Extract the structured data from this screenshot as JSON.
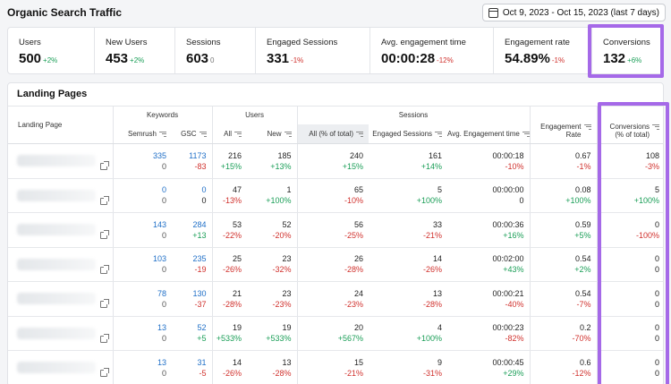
{
  "header": {
    "title": "Organic Search Traffic",
    "date_range": "Oct 9, 2023 - Oct 15, 2023 (last 7 days)"
  },
  "kpis": [
    {
      "label": "Users",
      "value": "500",
      "delta": "+2%",
      "tone": "pos"
    },
    {
      "label": "New Users",
      "value": "453",
      "delta": "+2%",
      "tone": "pos"
    },
    {
      "label": "Sessions",
      "value": "603",
      "delta": "0",
      "tone": "neu"
    },
    {
      "label": "Engaged Sessions",
      "value": "331",
      "delta": "-1%",
      "tone": "neg"
    },
    {
      "label": "Avg. engagement time",
      "value": "00:00:28",
      "delta": "-12%",
      "tone": "neg"
    },
    {
      "label": "Engagement rate",
      "value": "54.89%",
      "delta": "-1%",
      "tone": "neg"
    },
    {
      "label": "Conversions",
      "value": "132",
      "delta": "+6%",
      "tone": "pos"
    }
  ],
  "section_title": "Landing Pages",
  "table": {
    "groups": {
      "landing_page": "Landing Page",
      "keywords": "Keywords",
      "users": "Users",
      "sessions": "Sessions"
    },
    "columns": {
      "semrush": "Semrush",
      "gsc": "GSC",
      "all": "All",
      "new": "New",
      "all_pct": "All (% of total)",
      "engaged": "Engaged Sessions",
      "avg_time": "Avg. Engagement time",
      "eng_rate_1": "Engagement",
      "eng_rate_2": "Rate",
      "conv_1": "Conversions",
      "conv_2": "(% of total)"
    },
    "rows": [
      {
        "semrush": "335",
        "semrush_d": "0",
        "gsc": "1173",
        "gsc_d": "-83",
        "gsc_t": "neg",
        "all": "216",
        "all_d": "+15%",
        "all_t": "pos",
        "new": "185",
        "new_d": "+13%",
        "new_t": "pos",
        "sess": "240",
        "sess_d": "+15%",
        "sess_t": "pos",
        "eng": "161",
        "eng_d": "+14%",
        "eng_t": "pos",
        "time": "00:00:18",
        "time_d": "-10%",
        "time_t": "neg",
        "rate": "0.67",
        "rate_d": "-1%",
        "rate_t": "neg",
        "conv": "108",
        "conv_d": "-3%",
        "conv_t": "neg"
      },
      {
        "semrush": "0",
        "semrush_d": "0",
        "gsc": "0",
        "gsc_d": "0",
        "gsc_t": "dark",
        "all": "47",
        "all_d": "-13%",
        "all_t": "neg",
        "new": "1",
        "new_d": "+100%",
        "new_t": "pos",
        "sess": "65",
        "sess_d": "-10%",
        "sess_t": "neg",
        "eng": "5",
        "eng_d": "+100%",
        "eng_t": "pos",
        "time": "00:00:00",
        "time_d": "0",
        "time_t": "dark",
        "rate": "0.08",
        "rate_d": "+100%",
        "rate_t": "pos",
        "conv": "5",
        "conv_d": "+100%",
        "conv_t": "pos"
      },
      {
        "semrush": "143",
        "semrush_d": "0",
        "gsc": "284",
        "gsc_d": "+13",
        "gsc_t": "pos",
        "all": "53",
        "all_d": "-22%",
        "all_t": "neg",
        "new": "52",
        "new_d": "-20%",
        "new_t": "neg",
        "sess": "56",
        "sess_d": "-25%",
        "sess_t": "neg",
        "eng": "33",
        "eng_d": "-21%",
        "eng_t": "neg",
        "time": "00:00:36",
        "time_d": "+16%",
        "time_t": "pos",
        "rate": "0.59",
        "rate_d": "+5%",
        "rate_t": "pos",
        "conv": "0",
        "conv_d": "-100%",
        "conv_t": "neg"
      },
      {
        "semrush": "103",
        "semrush_d": "0",
        "gsc": "235",
        "gsc_d": "-19",
        "gsc_t": "neg",
        "all": "25",
        "all_d": "-26%",
        "all_t": "neg",
        "new": "23",
        "new_d": "-32%",
        "new_t": "neg",
        "sess": "26",
        "sess_d": "-28%",
        "sess_t": "neg",
        "eng": "14",
        "eng_d": "-26%",
        "eng_t": "neg",
        "time": "00:02:00",
        "time_d": "+43%",
        "time_t": "pos",
        "rate": "0.54",
        "rate_d": "+2%",
        "rate_t": "pos",
        "conv": "0",
        "conv_d": "0",
        "conv_t": "dark"
      },
      {
        "semrush": "78",
        "semrush_d": "0",
        "gsc": "130",
        "gsc_d": "-37",
        "gsc_t": "neg",
        "all": "21",
        "all_d": "-28%",
        "all_t": "neg",
        "new": "23",
        "new_d": "-23%",
        "new_t": "neg",
        "sess": "24",
        "sess_d": "-23%",
        "sess_t": "neg",
        "eng": "13",
        "eng_d": "-28%",
        "eng_t": "neg",
        "time": "00:00:21",
        "time_d": "-40%",
        "time_t": "neg",
        "rate": "0.54",
        "rate_d": "-7%",
        "rate_t": "neg",
        "conv": "0",
        "conv_d": "0",
        "conv_t": "dark"
      },
      {
        "semrush": "13",
        "semrush_d": "0",
        "gsc": "52",
        "gsc_d": "+5",
        "gsc_t": "pos",
        "all": "19",
        "all_d": "+533%",
        "all_t": "pos",
        "new": "19",
        "new_d": "+533%",
        "new_t": "pos",
        "sess": "20",
        "sess_d": "+567%",
        "sess_t": "pos",
        "eng": "4",
        "eng_d": "+100%",
        "eng_t": "pos",
        "time": "00:00:23",
        "time_d": "-82%",
        "time_t": "neg",
        "rate": "0.2",
        "rate_d": "-70%",
        "rate_t": "neg",
        "conv": "0",
        "conv_d": "0",
        "conv_t": "dark"
      },
      {
        "semrush": "13",
        "semrush_d": "0",
        "gsc": "31",
        "gsc_d": "-5",
        "gsc_t": "neg",
        "all": "14",
        "all_d": "-26%",
        "all_t": "neg",
        "new": "13",
        "new_d": "-28%",
        "new_t": "neg",
        "sess": "15",
        "sess_d": "-21%",
        "sess_t": "neg",
        "eng": "9",
        "eng_d": "-31%",
        "eng_t": "neg",
        "time": "00:00:45",
        "time_d": "+29%",
        "time_t": "pos",
        "rate": "0.6",
        "rate_d": "-12%",
        "rate_t": "neg",
        "conv": "0",
        "conv_d": "0",
        "conv_t": "dark"
      }
    ]
  },
  "colors": {
    "highlight": "#a569e8",
    "positive": "#1a9e57",
    "negative": "#d0312d",
    "link": "#1f6fc7"
  },
  "icons": {
    "date": "calendar-icon",
    "sort": "sort-icon",
    "external": "external-link-icon"
  }
}
